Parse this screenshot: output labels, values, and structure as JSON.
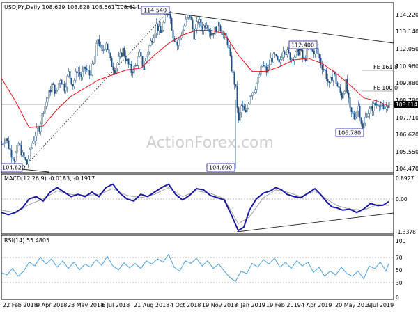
{
  "symbol": "USDJPY",
  "timeframe": "Daily",
  "ohlc": [
    "108.629",
    "108.828",
    "108.561",
    "108.614"
  ],
  "current_price": "108.614",
  "watermark": "ActionForex.com",
  "price_ticks": [
    "114.220",
    "113.140",
    "112.050",
    "110.960",
    "109.880",
    "108.790",
    "107.710",
    "106.620",
    "105.550",
    "104.470"
  ],
  "price_labels": {
    "high_1": "114.540",
    "low_1": "104.620",
    "low_2": "104.690",
    "high_2": "112.400",
    "low_3": "106.780",
    "fe_161": "FE 161.8",
    "fe_100": "FE 100.0"
  },
  "macd": {
    "label": "MACD(12,26,9)",
    "values": [
      "-0.0183",
      "-0.1917"
    ],
    "ticks": [
      "0.8927",
      "0.00",
      "-1.3378"
    ]
  },
  "rsi": {
    "label": "RSI(14)",
    "value": "55.4805",
    "ticks": [
      "100",
      "70",
      "50",
      "30",
      "0"
    ]
  },
  "x_labels": [
    "22 Feb 2018",
    "9 Apr 2018",
    "23 May 2018",
    "6 Jul 2018",
    "21 Aug 2018",
    "4 Oct 2018",
    "19 Nov 2018",
    "4 Jan 2019",
    "19 Feb 2019",
    "4 Apr 2019",
    "20 May 2019",
    "3 Jul 2019"
  ],
  "colors": {
    "candle": "#1f5080",
    "ma": "#e8121c",
    "macd": "#1a1aa0",
    "signal": "#a0a0a0",
    "rsi": "#4aa0dc",
    "trend": "#202020"
  },
  "chart_data": {
    "type": "candlestick",
    "price_range": [
      104.47,
      114.76
    ],
    "key_levels": {
      "high_aug_2018": 114.54,
      "low_mar_2018": 104.62,
      "low_jan_2019": 104.69,
      "high_apr_2019": 112.4,
      "low_jun_2019": 106.78,
      "fe_161_8": 110.95,
      "fe_100_0": 109.88,
      "current": 108.614
    },
    "close_path": [
      [
        0,
        106.2
      ],
      [
        6,
        106.6
      ],
      [
        12,
        105.8
      ],
      [
        18,
        105.3
      ],
      [
        24,
        106.2
      ],
      [
        30,
        105.5
      ],
      [
        36,
        105.0
      ],
      [
        42,
        106.0
      ],
      [
        48,
        106.8
      ],
      [
        54,
        107.2
      ],
      [
        60,
        108.3
      ],
      [
        66,
        109.0
      ],
      [
        72,
        109.8
      ],
      [
        78,
        109.3
      ],
      [
        84,
        110.2
      ],
      [
        90,
        109.6
      ],
      [
        96,
        110.5
      ],
      [
        102,
        109.8
      ],
      [
        108,
        110.7
      ],
      [
        114,
        110.3
      ],
      [
        120,
        110.8
      ],
      [
        126,
        110.4
      ],
      [
        132,
        111.0
      ],
      [
        138,
        112.6
      ],
      [
        144,
        111.7
      ],
      [
        150,
        112.4
      ],
      [
        156,
        111.2
      ],
      [
        162,
        110.7
      ],
      [
        168,
        111.3
      ],
      [
        174,
        111.9
      ],
      [
        180,
        111.2
      ],
      [
        186,
        110.6
      ],
      [
        192,
        110.9
      ],
      [
        198,
        111.6
      ],
      [
        204,
        110.8
      ],
      [
        210,
        111.9
      ],
      [
        216,
        112.6
      ],
      [
        222,
        113.4
      ],
      [
        228,
        112.9
      ],
      [
        234,
        113.8
      ],
      [
        240,
        114.3
      ],
      [
        246,
        112.8
      ],
      [
        252,
        112.2
      ],
      [
        258,
        112.9
      ],
      [
        264,
        113.6
      ],
      [
        270,
        114.0
      ],
      [
        276,
        112.8
      ],
      [
        282,
        113.7
      ],
      [
        288,
        113.2
      ],
      [
        294,
        113.6
      ],
      [
        300,
        112.9
      ],
      [
        306,
        113.1
      ],
      [
        312,
        113.5
      ],
      [
        318,
        112.8
      ],
      [
        324,
        112.4
      ],
      [
        330,
        110.8
      ],
      [
        336,
        109.5
      ],
      [
        340,
        107.5
      ],
      [
        344,
        108.5
      ],
      [
        350,
        108.0
      ],
      [
        356,
        109.2
      ],
      [
        362,
        109.5
      ],
      [
        368,
        110.1
      ],
      [
        374,
        111.0
      ],
      [
        380,
        110.6
      ],
      [
        386,
        111.3
      ],
      [
        392,
        111.5
      ],
      [
        398,
        111.0
      ],
      [
        404,
        112.0
      ],
      [
        410,
        111.7
      ],
      [
        416,
        111.4
      ],
      [
        422,
        111.6
      ],
      [
        428,
        111.9
      ],
      [
        434,
        111.2
      ],
      [
        440,
        112.0
      ],
      [
        446,
        111.8
      ],
      [
        452,
        111.9
      ],
      [
        458,
        111.1
      ],
      [
        464,
        110.6
      ],
      [
        470,
        109.7
      ],
      [
        476,
        110.6
      ],
      [
        482,
        109.7
      ],
      [
        488,
        109.1
      ],
      [
        494,
        109.9
      ],
      [
        500,
        108.2
      ],
      [
        506,
        107.8
      ],
      [
        512,
        108.5
      ],
      [
        518,
        107.1
      ],
      [
        524,
        108.1
      ],
      [
        530,
        108.3
      ],
      [
        536,
        108.6
      ],
      [
        542,
        108.7
      ],
      [
        548,
        108.2
      ],
      [
        554,
        108.614
      ]
    ],
    "ma_path": [
      [
        0,
        110.2
      ],
      [
        20,
        108.8
      ],
      [
        40,
        107.2
      ],
      [
        60,
        107.3
      ],
      [
        80,
        108.3
      ],
      [
        100,
        109.1
      ],
      [
        120,
        109.6
      ],
      [
        140,
        110.1
      ],
      [
        160,
        110.4
      ],
      [
        180,
        110.7
      ],
      [
        200,
        110.8
      ],
      [
        220,
        111.6
      ],
      [
        240,
        112.3
      ],
      [
        260,
        112.8
      ],
      [
        280,
        113.1
      ],
      [
        300,
        113.1
      ],
      [
        320,
        112.9
      ],
      [
        340,
        111.6
      ],
      [
        360,
        110.6
      ],
      [
        380,
        110.6
      ],
      [
        400,
        110.9
      ],
      [
        420,
        111.3
      ],
      [
        440,
        111.4
      ],
      [
        460,
        111.1
      ],
      [
        480,
        110.5
      ],
      [
        500,
        109.8
      ],
      [
        520,
        109.0
      ],
      [
        540,
        108.8
      ],
      [
        556,
        108.5
      ]
    ],
    "macd_path": [
      [
        0,
        -0.5
      ],
      [
        10,
        -0.6
      ],
      [
        20,
        -0.5
      ],
      [
        30,
        -0.3
      ],
      [
        40,
        0.1
      ],
      [
        50,
        0.2
      ],
      [
        60,
        0.0
      ],
      [
        70,
        0.4
      ],
      [
        80,
        0.6
      ],
      [
        90,
        0.4
      ],
      [
        100,
        0.2
      ],
      [
        110,
        0.3
      ],
      [
        120,
        0.2
      ],
      [
        130,
        0.4
      ],
      [
        140,
        0.2
      ],
      [
        150,
        0.6
      ],
      [
        160,
        0.75
      ],
      [
        170,
        0.35
      ],
      [
        180,
        0.1
      ],
      [
        190,
        0.0
      ],
      [
        200,
        0.3
      ],
      [
        210,
        0.2
      ],
      [
        220,
        0.4
      ],
      [
        230,
        0.6
      ],
      [
        240,
        0.75
      ],
      [
        250,
        0.3
      ],
      [
        260,
        0.05
      ],
      [
        270,
        0.25
      ],
      [
        280,
        0.55
      ],
      [
        290,
        0.5
      ],
      [
        300,
        0.25
      ],
      [
        310,
        0.15
      ],
      [
        320,
        0.05
      ],
      [
        330,
        -0.6
      ],
      [
        340,
        -1.3
      ],
      [
        348,
        -1.15
      ],
      [
        356,
        -0.4
      ],
      [
        366,
        0.1
      ],
      [
        376,
        0.35
      ],
      [
        386,
        0.45
      ],
      [
        394,
        0.6
      ],
      [
        402,
        0.5
      ],
      [
        410,
        0.3
      ],
      [
        420,
        0.2
      ],
      [
        430,
        0.15
      ],
      [
        440,
        0.35
      ],
      [
        450,
        0.55
      ],
      [
        458,
        0.3
      ],
      [
        466,
        0.0
      ],
      [
        474,
        -0.25
      ],
      [
        482,
        -0.3
      ],
      [
        490,
        -0.4
      ],
      [
        500,
        -0.35
      ],
      [
        510,
        -0.5
      ],
      [
        520,
        -0.35
      ],
      [
        530,
        -0.1
      ],
      [
        540,
        -0.2
      ],
      [
        548,
        -0.18
      ],
      [
        556,
        -0.02
      ]
    ],
    "signal_path": [
      [
        0,
        -0.4
      ],
      [
        20,
        -0.5
      ],
      [
        40,
        -0.15
      ],
      [
        60,
        0.1
      ],
      [
        80,
        0.45
      ],
      [
        100,
        0.3
      ],
      [
        120,
        0.25
      ],
      [
        140,
        0.3
      ],
      [
        160,
        0.55
      ],
      [
        180,
        0.25
      ],
      [
        200,
        0.15
      ],
      [
        220,
        0.3
      ],
      [
        240,
        0.6
      ],
      [
        260,
        0.2
      ],
      [
        280,
        0.45
      ],
      [
        300,
        0.35
      ],
      [
        320,
        0.1
      ],
      [
        340,
        -1.0
      ],
      [
        356,
        -0.7
      ],
      [
        376,
        0.15
      ],
      [
        394,
        0.5
      ],
      [
        410,
        0.4
      ],
      [
        430,
        0.2
      ],
      [
        450,
        0.45
      ],
      [
        466,
        0.1
      ],
      [
        482,
        -0.2
      ],
      [
        500,
        -0.35
      ],
      [
        520,
        -0.4
      ],
      [
        540,
        -0.15
      ],
      [
        556,
        -0.19
      ]
    ],
    "rsi_path": [
      [
        0,
        42
      ],
      [
        8,
        38
      ],
      [
        16,
        48
      ],
      [
        24,
        36
      ],
      [
        32,
        44
      ],
      [
        40,
        58
      ],
      [
        48,
        52
      ],
      [
        56,
        66
      ],
      [
        64,
        55
      ],
      [
        72,
        63
      ],
      [
        80,
        50
      ],
      [
        88,
        60
      ],
      [
        96,
        48
      ],
      [
        104,
        58
      ],
      [
        112,
        46
      ],
      [
        120,
        55
      ],
      [
        128,
        50
      ],
      [
        136,
        62
      ],
      [
        144,
        53
      ],
      [
        152,
        67
      ],
      [
        160,
        52
      ],
      [
        168,
        46
      ],
      [
        176,
        57
      ],
      [
        184,
        49
      ],
      [
        192,
        56
      ],
      [
        200,
        48
      ],
      [
        208,
        60
      ],
      [
        216,
        55
      ],
      [
        224,
        63
      ],
      [
        232,
        58
      ],
      [
        240,
        70
      ],
      [
        248,
        50
      ],
      [
        256,
        44
      ],
      [
        264,
        60
      ],
      [
        272,
        56
      ],
      [
        280,
        64
      ],
      [
        288,
        52
      ],
      [
        296,
        60
      ],
      [
        304,
        48
      ],
      [
        312,
        55
      ],
      [
        320,
        44
      ],
      [
        328,
        34
      ],
      [
        336,
        28
      ],
      [
        344,
        44
      ],
      [
        352,
        40
      ],
      [
        360,
        56
      ],
      [
        368,
        50
      ],
      [
        376,
        62
      ],
      [
        384,
        55
      ],
      [
        392,
        64
      ],
      [
        400,
        50
      ],
      [
        408,
        58
      ],
      [
        416,
        48
      ],
      [
        424,
        60
      ],
      [
        432,
        52
      ],
      [
        440,
        58
      ],
      [
        448,
        42
      ],
      [
        456,
        50
      ],
      [
        464,
        36
      ],
      [
        472,
        44
      ],
      [
        480,
        38
      ],
      [
        488,
        50
      ],
      [
        496,
        40
      ],
      [
        504,
        36
      ],
      [
        512,
        44
      ],
      [
        520,
        32
      ],
      [
        528,
        52
      ],
      [
        536,
        48
      ],
      [
        544,
        58
      ],
      [
        552,
        44
      ],
      [
        556,
        55.5
      ]
    ]
  }
}
